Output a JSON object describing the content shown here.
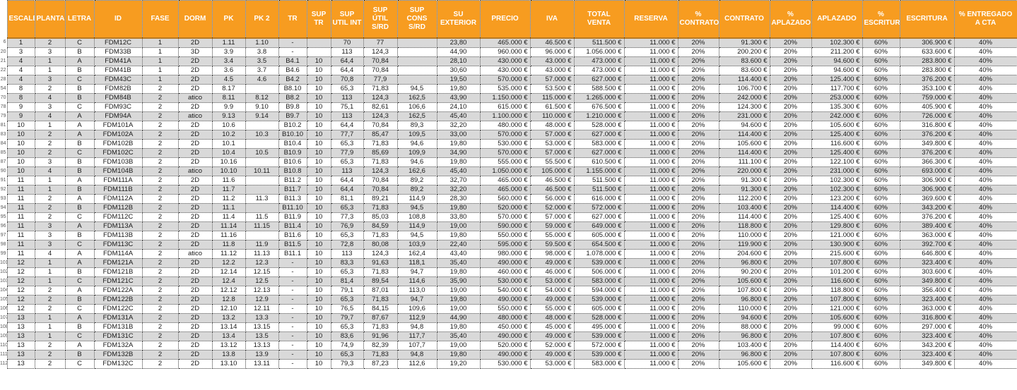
{
  "table": {
    "header_bg": "#F79C20",
    "stripe_color": "#D9D9D9",
    "columns": [
      "ESCALERA",
      "PLANTA",
      "LETRA",
      "ID",
      "FASE",
      "DORM",
      "PK",
      "PK 2",
      "TR",
      "SUP TR",
      "SUP UTIL INT",
      "SUP ÚTIL S/RD",
      "SUP CONS S/RD",
      "SU EXTERIOR",
      "PRECIO",
      "IVA",
      "TOTAL VENTA",
      "RESERVA",
      "% CONTRATO",
      "CONTRATO",
      "% APLAZADO",
      "APLAZADO",
      "% ESCRITURA",
      "ESCRITURA",
      "% ENTREGADO A CTA"
    ],
    "row_numbers": [
      "6",
      "20",
      "21",
      "22",
      "28",
      "54",
      "70",
      "78",
      "79",
      "81",
      "83",
      "84",
      "85",
      "87",
      "90",
      "91",
      "92",
      "93",
      "94",
      "95",
      "96",
      "97",
      "98",
      "99",
      "101",
      "102",
      "103",
      "104",
      "105",
      "106",
      "107",
      "108",
      "109",
      "110",
      "111",
      "112"
    ],
    "rows": [
      [
        "1",
        "2",
        "C",
        "FDM12C",
        "1",
        "2D",
        "1.11",
        "1.10",
        "-",
        "",
        "70",
        "77",
        "",
        "23,80",
        "465.000 €",
        "46.500 €",
        "511.500 €",
        "11.000 €",
        "20%",
        "91.300 €",
        "20%",
        "102.300 €",
        "60%",
        "306.900 €",
        "40%"
      ],
      [
        "3",
        "3",
        "B",
        "FDM33B",
        "1",
        "3D",
        "3.9",
        "3.8",
        "-",
        "",
        "113",
        "124,3",
        "",
        "44,90",
        "960.000 €",
        "96.000 €",
        "1.056.000 €",
        "11.000 €",
        "20%",
        "200.200 €",
        "20%",
        "211.200 €",
        "60%",
        "633.600 €",
        "40%"
      ],
      [
        "4",
        "1",
        "A",
        "FDM41A",
        "1",
        "2D",
        "3.4",
        "3.5",
        "B4.1",
        "10",
        "64,4",
        "70,84",
        "",
        "28,10",
        "430.000 €",
        "43.000 €",
        "473.000 €",
        "11.000 €",
        "20%",
        "83.600 €",
        "20%",
        "94.600 €",
        "60%",
        "283.800 €",
        "40%"
      ],
      [
        "4",
        "1",
        "B",
        "FDM41B",
        "1",
        "2D",
        "3.6",
        "3.7",
        "B4.6",
        "10",
        "64,4",
        "70,84",
        "",
        "30,60",
        "430.000 €",
        "43.000 €",
        "473.000 €",
        "11.000 €",
        "20%",
        "83.600 €",
        "20%",
        "94.600 €",
        "60%",
        "283.800 €",
        "40%"
      ],
      [
        "4",
        "3",
        "C",
        "FDM43C",
        "1",
        "2D",
        "4.5",
        "4.6",
        "B4.2",
        "10",
        "70,8",
        "77,9",
        "",
        "19,50",
        "570.000 €",
        "57.000 €",
        "627.000 €",
        "11.000 €",
        "20%",
        "114.400 €",
        "20%",
        "125.400 €",
        "60%",
        "376.200 €",
        "40%"
      ],
      [
        "8",
        "2",
        "B",
        "FDM82B",
        "2",
        "2D",
        "8.17",
        "",
        "B8.10",
        "10",
        "65,3",
        "71,83",
        "94,5",
        "19,80",
        "535.000 €",
        "53.500 €",
        "588.500 €",
        "11.000 €",
        "20%",
        "106.700 €",
        "20%",
        "117.700 €",
        "60%",
        "353.100 €",
        "40%"
      ],
      [
        "8",
        "4",
        "B",
        "FDM84B",
        "2",
        "atico",
        "8.11",
        "8.12",
        "B8.2",
        "10",
        "113",
        "124,3",
        "162,5",
        "43,90",
        "1.150.000 €",
        "115.000 €",
        "1.265.000 €",
        "11.000 €",
        "20%",
        "242.000 €",
        "20%",
        "253.000 €",
        "60%",
        "759.000 €",
        "40%"
      ],
      [
        "9",
        "3",
        "C",
        "FDM93C",
        "2",
        "2D",
        "9.9",
        "9.10",
        "B9.8",
        "10",
        "75,1",
        "82,61",
        "106,6",
        "24,10",
        "615.000 €",
        "61.500 €",
        "676.500 €",
        "11.000 €",
        "20%",
        "124.300 €",
        "20%",
        "135.300 €",
        "60%",
        "405.900 €",
        "40%"
      ],
      [
        "9",
        "4",
        "A",
        "FDM94A",
        "2",
        "atico",
        "9.13",
        "9.14",
        "B9.7",
        "10",
        "113",
        "124,3",
        "162,5",
        "45,40",
        "1.100.000 €",
        "110.000 €",
        "1.210.000 €",
        "11.000 €",
        "20%",
        "231.000 €",
        "20%",
        "242.000 €",
        "60%",
        "726.000 €",
        "40%"
      ],
      [
        "10",
        "1",
        "A",
        "FDM101A",
        "2",
        "2D",
        "10.6",
        "",
        "B10.2",
        "10",
        "64,4",
        "70,84",
        "89,3",
        "32,20",
        "480.000 €",
        "48.000 €",
        "528.000 €",
        "11.000 €",
        "20%",
        "94.600 €",
        "20%",
        "105.600 €",
        "60%",
        "316.800 €",
        "40%"
      ],
      [
        "10",
        "2",
        "A",
        "FDM102A",
        "2",
        "2D",
        "10.2",
        "10.3",
        "B10.10",
        "10",
        "77,7",
        "85,47",
        "109,5",
        "33,00",
        "570.000 €",
        "57.000 €",
        "627.000 €",
        "11.000 €",
        "20%",
        "114.400 €",
        "20%",
        "125.400 €",
        "60%",
        "376.200 €",
        "40%"
      ],
      [
        "10",
        "2",
        "B",
        "FDM102B",
        "2",
        "2D",
        "10.1",
        "",
        "B10.4",
        "10",
        "65,3",
        "71,83",
        "94,6",
        "19,80",
        "530.000 €",
        "53.000 €",
        "583.000 €",
        "11.000 €",
        "20%",
        "105.600 €",
        "20%",
        "116.600 €",
        "60%",
        "349.800 €",
        "40%"
      ],
      [
        "10",
        "2",
        "C",
        "FDM102C",
        "2",
        "2D",
        "10.4",
        "10.5",
        "B10.9",
        "10",
        "77,9",
        "85,69",
        "109,9",
        "34,90",
        "570.000 €",
        "57.000 €",
        "627.000 €",
        "11.000 €",
        "20%",
        "114.400 €",
        "20%",
        "125.400 €",
        "60%",
        "376.200 €",
        "40%"
      ],
      [
        "10",
        "3",
        "B",
        "FDM103B",
        "2",
        "2D",
        "10.16",
        "",
        "B10.6",
        "10",
        "65,3",
        "71,83",
        "94,6",
        "19,80",
        "555.000 €",
        "55.500 €",
        "610.500 €",
        "11.000 €",
        "20%",
        "111.100 €",
        "20%",
        "122.100 €",
        "60%",
        "366.300 €",
        "40%"
      ],
      [
        "10",
        "4",
        "B",
        "FDM104B",
        "2",
        "atico",
        "10.10",
        "10.11",
        "B10.8",
        "10",
        "113",
        "124,3",
        "162,6",
        "45,40",
        "1.050.000 €",
        "105.000 €",
        "1.155.000 €",
        "11.000 €",
        "20%",
        "220.000 €",
        "20%",
        "231.000 €",
        "60%",
        "693.000 €",
        "40%"
      ],
      [
        "11",
        "1",
        "A",
        "FDM111A",
        "2",
        "2D",
        "11.6",
        "",
        "B11.2",
        "10",
        "64,4",
        "70,84",
        "89,2",
        "32,70",
        "465.000 €",
        "46.500 €",
        "511.500 €",
        "11.000 €",
        "20%",
        "91.300 €",
        "20%",
        "102.300 €",
        "60%",
        "306.900 €",
        "40%"
      ],
      [
        "11",
        "1",
        "B",
        "FDM111B",
        "2",
        "2D",
        "11.7",
        "",
        "B11.7",
        "10",
        "64,4",
        "70,84",
        "89,2",
        "32,20",
        "465.000 €",
        "46.500 €",
        "511.500 €",
        "11.000 €",
        "20%",
        "91.300 €",
        "20%",
        "102.300 €",
        "60%",
        "306.900 €",
        "40%"
      ],
      [
        "11",
        "2",
        "A",
        "FDM112A",
        "2",
        "2D",
        "11.2",
        "11.3",
        "B11.3",
        "10",
        "81,1",
        "89,21",
        "114,9",
        "28,30",
        "560.000 €",
        "56.000 €",
        "616.000 €",
        "11.000 €",
        "20%",
        "112.200 €",
        "20%",
        "123.200 €",
        "60%",
        "369.600 €",
        "40%"
      ],
      [
        "11",
        "2",
        "B",
        "FDM112B",
        "2",
        "2D",
        "11.1",
        "",
        "B11.10",
        "10",
        "65,3",
        "71,83",
        "94,5",
        "19,80",
        "520.000 €",
        "52.000 €",
        "572.000 €",
        "11.000 €",
        "20%",
        "103.400 €",
        "20%",
        "114.400 €",
        "60%",
        "343.200 €",
        "40%"
      ],
      [
        "11",
        "2",
        "C",
        "FDM112C",
        "2",
        "2D",
        "11.4",
        "11.5",
        "B11.9",
        "10",
        "77,3",
        "85,03",
        "108,8",
        "33,80",
        "570.000 €",
        "57.000 €",
        "627.000 €",
        "11.000 €",
        "20%",
        "114.400 €",
        "20%",
        "125.400 €",
        "60%",
        "376.200 €",
        "40%"
      ],
      [
        "11",
        "3",
        "A",
        "FDM113A",
        "2",
        "2D",
        "11.14",
        "11.15",
        "B11.4",
        "10",
        "76,9",
        "84,59",
        "114,9",
        "19,00",
        "590.000 €",
        "59.000 €",
        "649.000 €",
        "11.000 €",
        "20%",
        "118.800 €",
        "20%",
        "129.800 €",
        "60%",
        "389.400 €",
        "40%"
      ],
      [
        "11",
        "3",
        "B",
        "FDM113B",
        "2",
        "2D",
        "11.16",
        "",
        "B11.6",
        "10",
        "65,3",
        "71,83",
        "94,5",
        "19,80",
        "550.000 €",
        "55.000 €",
        "605.000 €",
        "11.000 €",
        "20%",
        "110.000 €",
        "20%",
        "121.000 €",
        "60%",
        "363.000 €",
        "40%"
      ],
      [
        "11",
        "3",
        "C",
        "FDM113C",
        "2",
        "2D",
        "11.8",
        "11.9",
        "B11.5",
        "10",
        "72,8",
        "80,08",
        "103,9",
        "22,40",
        "595.000 €",
        "59.500 €",
        "654.500 €",
        "11.000 €",
        "20%",
        "119.900 €",
        "20%",
        "130.900 €",
        "60%",
        "392.700 €",
        "40%"
      ],
      [
        "11",
        "4",
        "A",
        "FDM114A",
        "2",
        "atico",
        "11.12",
        "11.13",
        "B11.1",
        "10",
        "113",
        "124,3",
        "162,4",
        "43,40",
        "980.000 €",
        "98.000 €",
        "1.078.000 €",
        "11.000 €",
        "20%",
        "204.600 €",
        "20%",
        "215.600 €",
        "60%",
        "646.800 €",
        "40%"
      ],
      [
        "12",
        "1",
        "A",
        "FDM121A",
        "2",
        "2D",
        "12.2",
        "12.3",
        "-",
        "10",
        "83,3",
        "91,63",
        "118,1",
        "35,40",
        "490.000 €",
        "49.000 €",
        "539.000 €",
        "11.000 €",
        "20%",
        "96.800 €",
        "20%",
        "107.800 €",
        "60%",
        "323.400 €",
        "40%"
      ],
      [
        "12",
        "1",
        "B",
        "FDM121B",
        "2",
        "2D",
        "12.14",
        "12.15",
        "-",
        "10",
        "65,3",
        "71,83",
        "94,7",
        "19,80",
        "460.000 €",
        "46.000 €",
        "506.000 €",
        "11.000 €",
        "20%",
        "90.200 €",
        "20%",
        "101.200 €",
        "60%",
        "303.600 €",
        "40%"
      ],
      [
        "12",
        "1",
        "C",
        "FDM121C",
        "2",
        "2D",
        "12.4",
        "12.5",
        "-",
        "10",
        "81,4",
        "89,54",
        "114,6",
        "35,90",
        "530.000 €",
        "53.000 €",
        "583.000 €",
        "11.000 €",
        "20%",
        "105.600 €",
        "20%",
        "116.600 €",
        "60%",
        "349.800 €",
        "40%"
      ],
      [
        "12",
        "2",
        "A",
        "FDM122A",
        "2",
        "2D",
        "12.12",
        "12.13",
        "-",
        "10",
        "79,1",
        "87,01",
        "113,0",
        "19,00",
        "540.000 €",
        "54.000 €",
        "594.000 €",
        "11.000 €",
        "20%",
        "107.800 €",
        "20%",
        "118.800 €",
        "60%",
        "356.400 €",
        "40%"
      ],
      [
        "12",
        "2",
        "B",
        "FDM122B",
        "2",
        "2D",
        "12.8",
        "12.9",
        "-",
        "10",
        "65,3",
        "71,83",
        "94,7",
        "19,80",
        "490.000 €",
        "49.000 €",
        "539.000 €",
        "11.000 €",
        "20%",
        "96.800 €",
        "20%",
        "107.800 €",
        "60%",
        "323.400 €",
        "40%"
      ],
      [
        "12",
        "2",
        "C",
        "FDM122C",
        "2",
        "2D",
        "12.10",
        "12.11",
        "-",
        "10",
        "76,5",
        "84,15",
        "109,6",
        "19,00",
        "550.000 €",
        "55.000 €",
        "605.000 €",
        "11.000 €",
        "20%",
        "110.000 €",
        "20%",
        "121.000 €",
        "60%",
        "363.000 €",
        "40%"
      ],
      [
        "13",
        "1",
        "A",
        "FDM131A",
        "2",
        "2D",
        "13.2",
        "13.3",
        "-",
        "10",
        "79,7",
        "87,67",
        "112,9",
        "44,90",
        "480.000 €",
        "48.000 €",
        "528.000 €",
        "11.000 €",
        "20%",
        "94.600 €",
        "20%",
        "105.600 €",
        "60%",
        "316.800 €",
        "40%"
      ],
      [
        "13",
        "1",
        "B",
        "FDM131B",
        "2",
        "2D",
        "13.14",
        "13.15",
        "-",
        "10",
        "65,3",
        "71,83",
        "94,8",
        "19,80",
        "450.000 €",
        "45.000 €",
        "495.000 €",
        "11.000 €",
        "20%",
        "88.000 €",
        "20%",
        "99.000 €",
        "60%",
        "297.000 €",
        "40%"
      ],
      [
        "13",
        "1",
        "C",
        "FDM131C",
        "2",
        "2D",
        "13.4",
        "13.5",
        "-",
        "10",
        "83,6",
        "91,96",
        "117,7",
        "35,40",
        "490.000 €",
        "49.000 €",
        "539.000 €",
        "11.000 €",
        "20%",
        "96.800 €",
        "20%",
        "107.800 €",
        "60%",
        "323.400 €",
        "40%"
      ],
      [
        "13",
        "2",
        "A",
        "FDM132A",
        "2",
        "2D",
        "13.12",
        "13.13",
        "-",
        "10",
        "74,9",
        "82,39",
        "107,7",
        "19,00",
        "520.000 €",
        "52.000 €",
        "572.000 €",
        "11.000 €",
        "20%",
        "103.400 €",
        "20%",
        "114.400 €",
        "60%",
        "343.200 €",
        "40%"
      ],
      [
        "13",
        "2",
        "B",
        "FDM132B",
        "2",
        "2D",
        "13.8",
        "13.9",
        "-",
        "10",
        "65,3",
        "71,83",
        "94,8",
        "19,80",
        "490.000 €",
        "49.000 €",
        "539.000 €",
        "11.000 €",
        "20%",
        "96.800 €",
        "20%",
        "107.800 €",
        "60%",
        "323.400 €",
        "40%"
      ],
      [
        "13",
        "2",
        "C",
        "FDM132C",
        "2",
        "2D",
        "13.10",
        "13.11",
        "-",
        "10",
        "79,3",
        "87,23",
        "112,6",
        "19,20",
        "530.000 €",
        "53.000 €",
        "583.000 €",
        "11.000 €",
        "20%",
        "105.600 €",
        "20%",
        "116.600 €",
        "60%",
        "349.800 €",
        "40%"
      ]
    ]
  }
}
